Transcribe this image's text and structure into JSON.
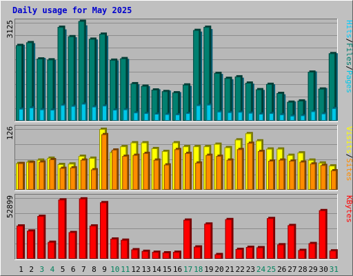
{
  "title": "Daily usage for May 2025",
  "colors": {
    "background": "#c0c0c0",
    "plot_background": "#b8b8b8",
    "grid": "#8c8c8c",
    "title_text": "#0000cc",
    "axis_text": "#000000",
    "weekend_day": "#00805c",
    "hits": "#00ccff",
    "hits_dark": "#00a0c8",
    "files": "#008070",
    "pages": "#00c8e8",
    "visits": "#ffff00",
    "sites": "#ff8c00",
    "kbytes": "#ff0000"
  },
  "chart_data": [
    {
      "type": "bar",
      "panel": "hits-files-pages",
      "axis_max_label": "3125",
      "ylim": [
        0,
        3125
      ],
      "grid": true,
      "legend": [
        {
          "name": "Pages",
          "color_key": "pages"
        },
        {
          "name": "Files",
          "color_key": "files"
        },
        {
          "name": "Hits",
          "color_key": "hits"
        }
      ],
      "categories": [
        "1",
        "2",
        "3",
        "4",
        "5",
        "6",
        "7",
        "8",
        "9",
        "10",
        "11",
        "12",
        "13",
        "14",
        "15",
        "16",
        "17",
        "18",
        "19",
        "20",
        "21",
        "22",
        "23",
        "24",
        "25",
        "26",
        "27",
        "28",
        "29",
        "30",
        "31"
      ],
      "series": [
        {
          "name": "Hits",
          "color_key": "hits",
          "values": [
            2380,
            2430,
            1960,
            1900,
            2870,
            2620,
            3000,
            2550,
            2660,
            1880,
            1930,
            1120,
            1060,
            960,
            920,
            870,
            1070,
            2800,
            2880,
            1450,
            1280,
            1330,
            1140,
            940,
            1120,
            800,
            570,
            600,
            1530,
            1000,
            2110
          ]
        },
        {
          "name": "Files",
          "color_key": "files",
          "values": [
            2410,
            2500,
            1980,
            1950,
            2990,
            2690,
            3180,
            2610,
            2770,
            1940,
            1990,
            1190,
            1110,
            990,
            940,
            900,
            1150,
            2890,
            2990,
            1520,
            1360,
            1410,
            1210,
            1000,
            1170,
            880,
            600,
            640,
            1560,
            1020,
            2150
          ]
        },
        {
          "name": "Pages",
          "color_key": "pages",
          "values": [
            380,
            420,
            360,
            350,
            500,
            470,
            540,
            450,
            480,
            350,
            360,
            260,
            240,
            220,
            210,
            200,
            240,
            490,
            510,
            290,
            270,
            280,
            250,
            220,
            240,
            200,
            160,
            170,
            300,
            230,
            400
          ]
        }
      ]
    },
    {
      "type": "bar",
      "panel": "visits-sites",
      "axis_max_label": "126",
      "ylim": [
        0,
        126
      ],
      "grid": true,
      "legend": [
        {
          "name": "Sites",
          "color_key": "sites"
        },
        {
          "name": "Visits",
          "color_key": "visits"
        }
      ],
      "categories": [
        "1",
        "2",
        "3",
        "4",
        "5",
        "6",
        "7",
        "8",
        "9",
        "10",
        "11",
        "12",
        "13",
        "14",
        "15",
        "16",
        "17",
        "18",
        "19",
        "20",
        "21",
        "22",
        "23",
        "24",
        "25",
        "26",
        "27",
        "28",
        "29",
        "30",
        "31"
      ],
      "series": [
        {
          "name": "Visits",
          "color_key": "visits",
          "values": [
            55,
            58,
            62,
            66,
            53,
            54,
            70,
            66,
            126,
            78,
            90,
            98,
            98,
            86,
            80,
            98,
            90,
            90,
            90,
            95,
            88,
            104,
            117,
            102,
            85,
            85,
            72,
            77,
            62,
            56,
            50
          ]
        },
        {
          "name": "Sites",
          "color_key": "sites",
          "values": [
            55,
            57,
            58,
            63,
            45,
            46,
            62,
            42,
            115,
            83,
            70,
            72,
            76,
            62,
            52,
            84,
            76,
            56,
            72,
            70,
            62,
            84,
            97,
            80,
            60,
            62,
            60,
            58,
            54,
            51,
            40
          ]
        }
      ]
    },
    {
      "type": "bar",
      "panel": "kbytes",
      "axis_max_label": "52899",
      "ylim": [
        0,
        52899
      ],
      "grid": true,
      "legend": [
        {
          "name": "KBytes",
          "color_key": "kbytes"
        }
      ],
      "categories": [
        "1",
        "2",
        "3",
        "4",
        "5",
        "6",
        "7",
        "8",
        "9",
        "10",
        "11",
        "12",
        "13",
        "14",
        "15",
        "16",
        "17",
        "18",
        "19",
        "20",
        "21",
        "22",
        "23",
        "24",
        "25",
        "26",
        "27",
        "28",
        "29",
        "30",
        "31"
      ],
      "series": [
        {
          "name": "KBytes",
          "color_key": "kbytes",
          "values": [
            28800,
            24400,
            37200,
            14600,
            51500,
            23100,
            52400,
            28800,
            49100,
            17400,
            16400,
            8100,
            6700,
            5900,
            5400,
            5900,
            33900,
            10500,
            30500,
            3900,
            34400,
            8400,
            10200,
            9900,
            35300,
            12400,
            29200,
            7500,
            13500,
            42200,
            7100
          ]
        }
      ]
    }
  ],
  "x_axis": {
    "days": [
      "1",
      "2",
      "3",
      "4",
      "5",
      "6",
      "7",
      "8",
      "9",
      "10",
      "11",
      "12",
      "13",
      "14",
      "15",
      "16",
      "17",
      "18",
      "19",
      "20",
      "21",
      "22",
      "23",
      "24",
      "25",
      "26",
      "27",
      "28",
      "29",
      "30",
      "31"
    ],
    "weekend_days": [
      "3",
      "4",
      "10",
      "11",
      "17",
      "18",
      "24",
      "25",
      "31"
    ]
  }
}
